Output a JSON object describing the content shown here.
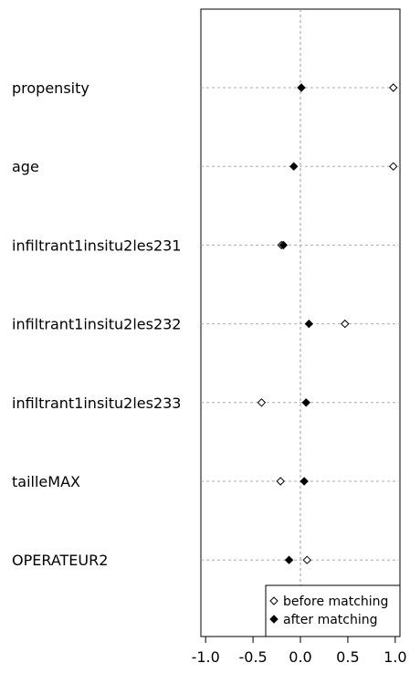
{
  "chart_data": {
    "type": "scatter",
    "title": "",
    "xlabel": "",
    "ylabel": "",
    "xlim": [
      -1.05,
      1.05
    ],
    "xticks": [
      -1.0,
      -0.5,
      0.0,
      0.5,
      1.0
    ],
    "xtick_labels": [
      "-1.0",
      "-0.5",
      "0.0",
      "0.5",
      "1.0"
    ],
    "categories": [
      "propensity",
      "age",
      "infiltrant1insitu2les231",
      "infiltrant1insitu2les232",
      "infiltrant1insitu2les233",
      "tailleMAX",
      "OPERATEUR2"
    ],
    "series": [
      {
        "name": "before matching",
        "marker": "open-diamond",
        "values": [
          0.98,
          0.98,
          -0.2,
          0.47,
          -0.41,
          -0.21,
          0.07
        ]
      },
      {
        "name": "after matching",
        "marker": "filled-diamond",
        "values": [
          0.01,
          -0.07,
          -0.18,
          0.09,
          0.06,
          0.04,
          -0.12
        ]
      }
    ],
    "legend": {
      "position": "bottom-right",
      "entries": [
        "before matching",
        "after matching"
      ]
    },
    "grid": "dotted",
    "reference_line_x": 0
  }
}
